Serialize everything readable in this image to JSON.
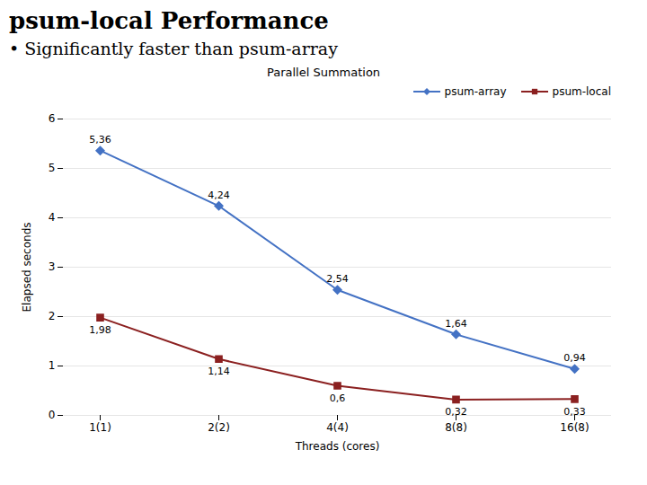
{
  "chart_data": {
    "type": "line",
    "title": "psum-local Performance",
    "subtitle": "• Significantly faster than psum-array",
    "annotations": [
      "Parallel Summation"
    ],
    "xlabel": "Threads (cores)",
    "ylabel": "Elapsed seconds",
    "categories": [
      "1(1)",
      "2(2)",
      "4(4)",
      "8(8)",
      "16(8)"
    ],
    "series": [
      {
        "name": "psum-array",
        "color": "#4472C4",
        "marker": "diamond",
        "values": [
          5.36,
          4.24,
          2.54,
          1.64,
          0.94
        ],
        "value_labels": [
          "5,36",
          "4,24",
          "2,54",
          "1,64",
          "0,94"
        ]
      },
      {
        "name": "psum-local",
        "color": "#8B2020",
        "marker": "square",
        "values": [
          1.98,
          1.14,
          0.6,
          0.32,
          0.33
        ],
        "value_labels": [
          "1,98",
          "1,14",
          "0,6",
          "0,32",
          "0,33"
        ]
      }
    ],
    "ylim": [
      0,
      6
    ],
    "yticks": [
      0,
      1,
      2,
      3,
      4,
      5,
      6
    ],
    "grid": true,
    "legend": "upper right",
    "data_labels": true
  }
}
